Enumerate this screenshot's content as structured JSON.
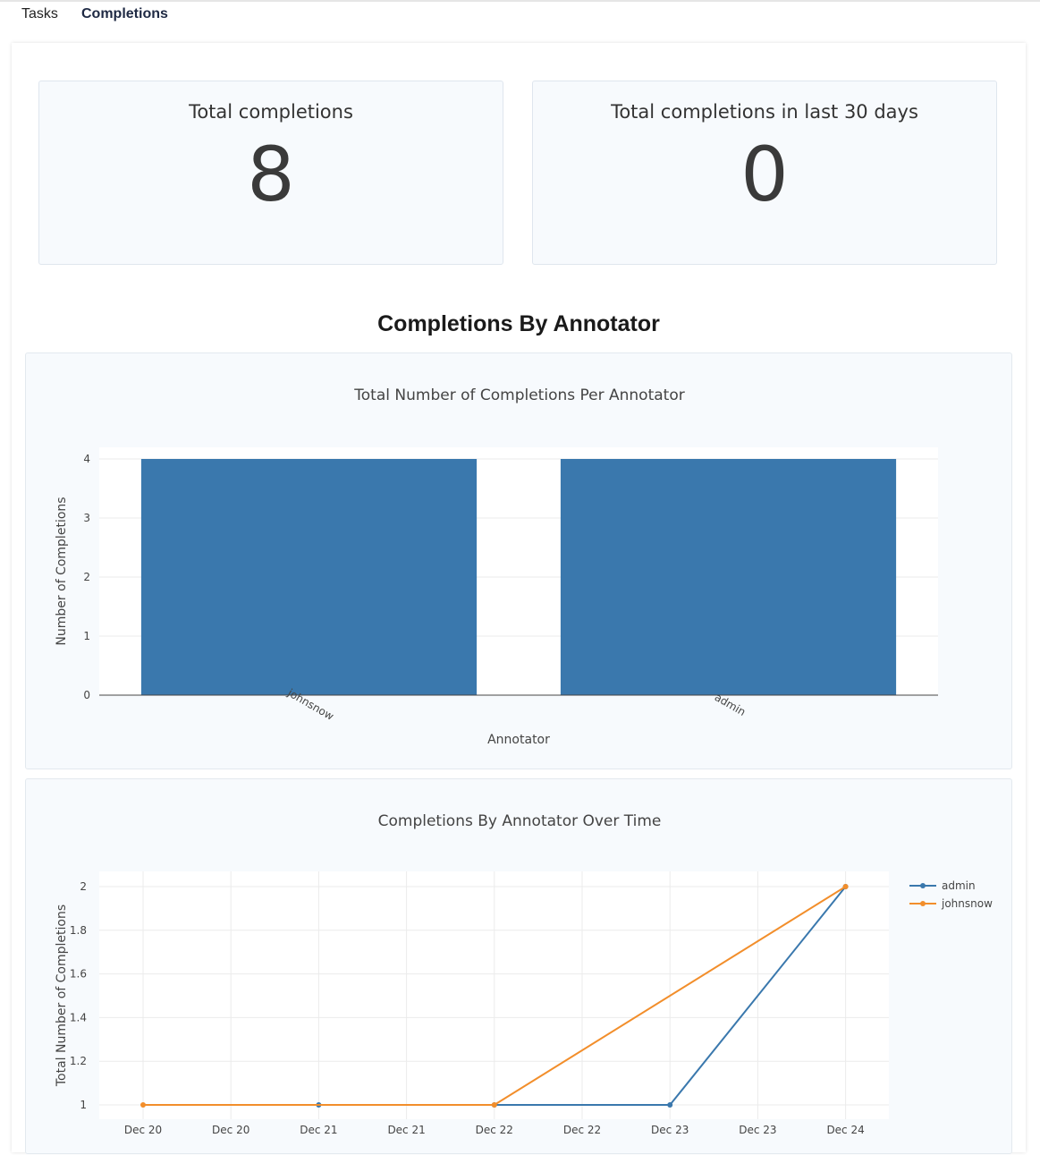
{
  "nav": {
    "tabs": [
      {
        "label": "Tasks",
        "active": false
      },
      {
        "label": "Completions",
        "active": true
      }
    ]
  },
  "stats": {
    "total": {
      "label": "Total completions",
      "value": "8"
    },
    "last30": {
      "label": "Total completions in last 30 days",
      "value": "0"
    }
  },
  "section": {
    "title": "Completions By Annotator"
  },
  "colors": {
    "admin": "#3a78ad",
    "johnsnow": "#f28e2b",
    "panel": "#f7fafd"
  },
  "chart_data": [
    {
      "type": "bar",
      "title": "Total Number of Completions Per Annotator",
      "categories": [
        "johnsnow",
        "admin"
      ],
      "values": [
        4,
        4
      ],
      "xlabel": "Annotator",
      "ylabel": "Number of Completions",
      "ylim": [
        0,
        4
      ],
      "yticks": [
        0,
        1,
        2,
        3,
        4
      ]
    },
    {
      "type": "line",
      "title": "Completions By Annotator Over Time",
      "xlabel": "",
      "ylabel": "Total Number of Completions",
      "ylim": [
        1,
        2
      ],
      "yticks": [
        "1",
        "1.2",
        "1.4",
        "1.6",
        "1.8",
        "2"
      ],
      "xticks": [
        "Dec 20",
        "Dec 20",
        "Dec 21",
        "Dec 21",
        "Dec 22",
        "Dec 22",
        "Dec 23",
        "Dec 23",
        "Dec 24"
      ],
      "legend": "top-right",
      "series": [
        {
          "name": "admin",
          "x": [
            "Dec 21",
            "Dec 22",
            "Dec 23",
            "Dec 24"
          ],
          "y": [
            1,
            1,
            1,
            2
          ]
        },
        {
          "name": "johnsnow",
          "x": [
            "Dec 20",
            "Dec 22",
            "Dec 24"
          ],
          "y": [
            1,
            1,
            2
          ]
        }
      ]
    }
  ]
}
